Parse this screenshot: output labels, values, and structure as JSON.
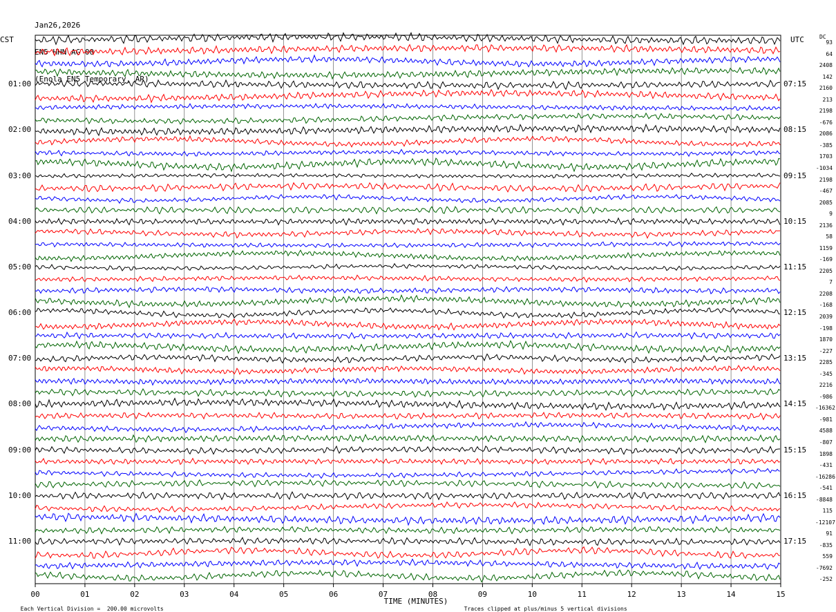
{
  "header": {
    "date": "Jan26,2026",
    "station": "EN5 HHN AG 00",
    "location": "(Enola EN5 Temporary, AR)"
  },
  "left_tz": "CST",
  "right_tz": "UTC",
  "dc_label": "DC",
  "left_time_labels": [
    "01:00",
    "02:00",
    "03:00",
    "04:00",
    "05:00",
    "06:00",
    "07:00",
    "08:00",
    "09:00",
    "10:00",
    "11:00"
  ],
  "right_time_labels": [
    "07:15",
    "08:15",
    "09:15",
    "10:15",
    "11:15",
    "12:15",
    "13:15",
    "14:15",
    "15:15",
    "16:15",
    "17:15"
  ],
  "dc_offsets": [
    "93",
    "64",
    "2408",
    "142",
    "2160",
    "213",
    "2198",
    "-676",
    "2086",
    "-385",
    "1703",
    "-1034",
    "2198",
    "-467",
    "2085",
    "9",
    "2136",
    "58",
    "1159",
    "-169",
    "2205",
    "7",
    "2208",
    "-168",
    "2039",
    "-198",
    "1870",
    "-227",
    "2285",
    "-345",
    "2216",
    "-986",
    "-16362",
    "-981",
    "4588",
    "-807",
    "1898",
    "-431",
    "-16286",
    "-541",
    "-8848",
    "115",
    "-12107",
    "91",
    "-835",
    "559",
    "-7692",
    "-252"
  ],
  "x_ticks": [
    "00",
    "01",
    "02",
    "03",
    "04",
    "05",
    "06",
    "07",
    "08",
    "09",
    "10",
    "11",
    "12",
    "13",
    "14",
    "15"
  ],
  "x_axis_title": "TIME (MINUTES)",
  "footer": {
    "scale_note": "Each Vertical Division =  200.00 microvolts",
    "clip_note": "Traces clipped at plus/minus 5 vertical divisions"
  },
  "colors": {
    "trace_cycle": [
      "#000000",
      "#ff0000",
      "#0000ff",
      "#006400"
    ],
    "grid": "#000000"
  },
  "chart_data": {
    "type": "line",
    "description_of_axes": "helicorder: 48 traces of 15 minutes each",
    "xlabel": "TIME (MINUTES)",
    "xlim": [
      0,
      15
    ],
    "trace_count": 48,
    "minutes_per_trace": 15,
    "vertical_division_microvolts": 200.0,
    "clip_divisions": 5
  }
}
